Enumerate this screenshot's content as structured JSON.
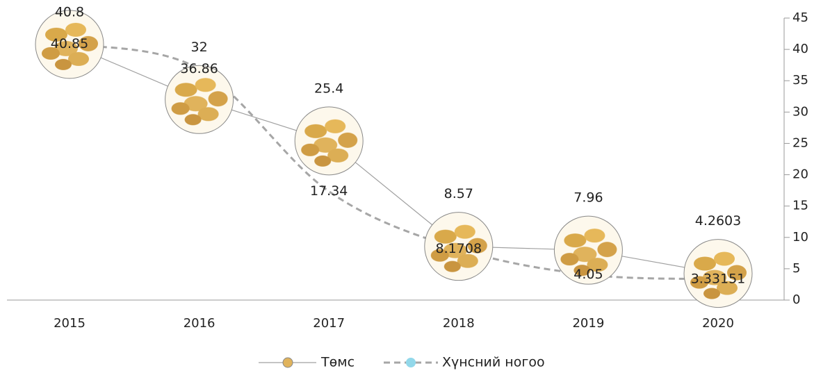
{
  "chart_data": {
    "type": "line",
    "categories": [
      "2015",
      "2016",
      "2017",
      "2018",
      "2019",
      "2020"
    ],
    "series": [
      {
        "name": "Төмс",
        "color": "#a0a0a0",
        "values": [
          40.8,
          32,
          25.4,
          8.57,
          7.96,
          4.2603
        ]
      },
      {
        "name": "Хүнсний ногоо",
        "color": "#a6a6a6",
        "values": [
          40.85,
          36.86,
          17.34,
          8.1708,
          4.05,
          3.33151
        ]
      }
    ],
    "ylim": [
      0,
      45
    ],
    "yticks": [
      0,
      5,
      10,
      15,
      20,
      25,
      30,
      35,
      40,
      45
    ],
    "y_axis_side": "right"
  }
}
